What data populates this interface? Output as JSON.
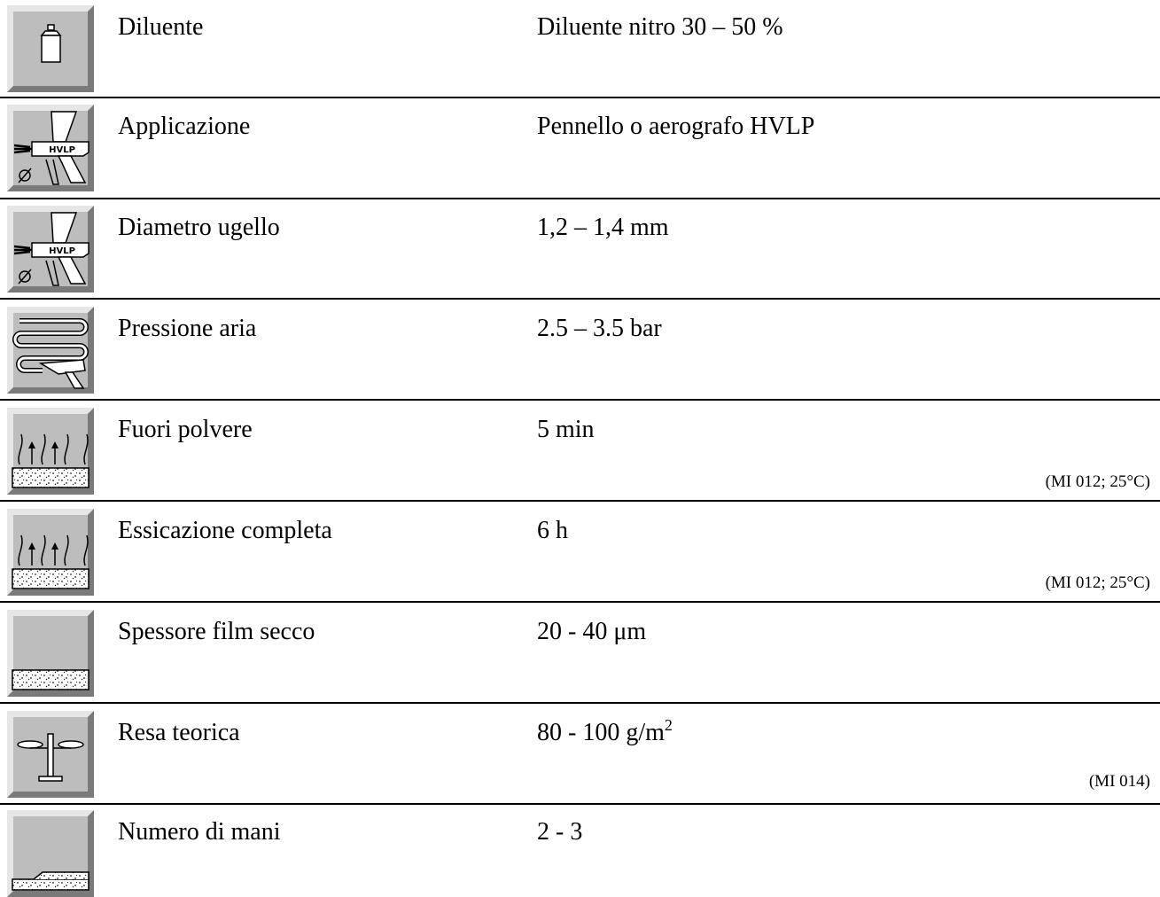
{
  "rows": [
    {
      "label": "Diluente",
      "value": "Diluente nitro 30 – 50 %",
      "note": "",
      "icon": "thinner-can-icon"
    },
    {
      "label": "Applicazione",
      "value": "Pennello o aerografo HVLP",
      "note": "",
      "icon": "hvlp-spray-gun-icon",
      "icon_text": "HVLP"
    },
    {
      "label": "Diametro ugello",
      "value": "1,2 – 1,4 mm",
      "note": "",
      "icon": "hvlp-nozzle-diameter-icon",
      "icon_text": "HVLP"
    },
    {
      "label": "Pressione aria",
      "value": "2.5 – 3.5 bar",
      "note": "",
      "icon": "air-pressure-icon"
    },
    {
      "label": "Fuori polvere",
      "value": "5 min",
      "note": "(MI 012; 25°C)",
      "icon": "dust-free-drying-icon"
    },
    {
      "label": "Essicazione completa",
      "value": "6 h",
      "note": "(MI 012; 25°C)",
      "icon": "full-drying-icon"
    },
    {
      "label": "Spessore film secco",
      "value": "20 - 40 μm",
      "note": "",
      "icon": "dry-film-thickness-icon"
    },
    {
      "label": "Resa teorica",
      "value": "80 - 100 g/m",
      "value_sup": "2",
      "note": "(MI 014)",
      "icon": "balance-scale-icon"
    },
    {
      "label": "Numero di mani",
      "value": "2 - 3",
      "note": "",
      "icon": "number-of-coats-icon"
    }
  ],
  "colors": {
    "tile_face": "#bdbdbd",
    "tile_light": "#e6e6e6",
    "tile_dark": "#7a7a7a",
    "rule": "#000000"
  }
}
